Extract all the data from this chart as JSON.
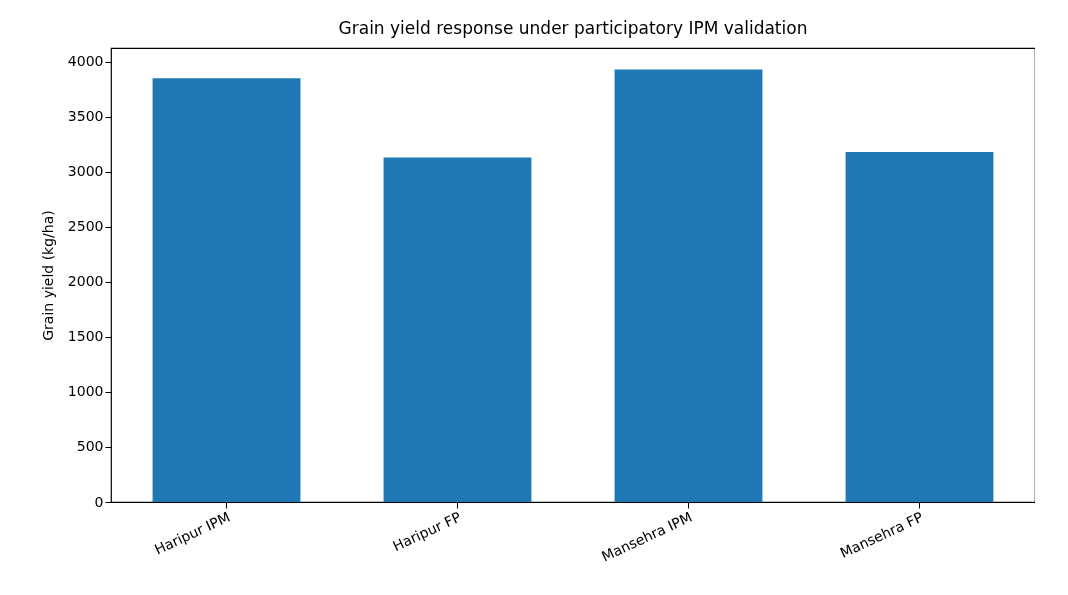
{
  "chart_data": {
    "type": "bar",
    "title": "Grain yield response under participatory IPM validation",
    "ylabel": "Grain yield (kg/ha)",
    "categories": [
      "Haripur IPM",
      "Haripur FP",
      "Mansehra IPM",
      "Mansehra FP"
    ],
    "values": [
      3850,
      3130,
      3930,
      3180
    ],
    "color": "#1f77b4",
    "ylim": [
      0,
      4125
    ],
    "yticks": [
      0,
      500,
      1000,
      1500,
      2000,
      2500,
      3000,
      3500,
      4000
    ],
    "grid": false
  }
}
